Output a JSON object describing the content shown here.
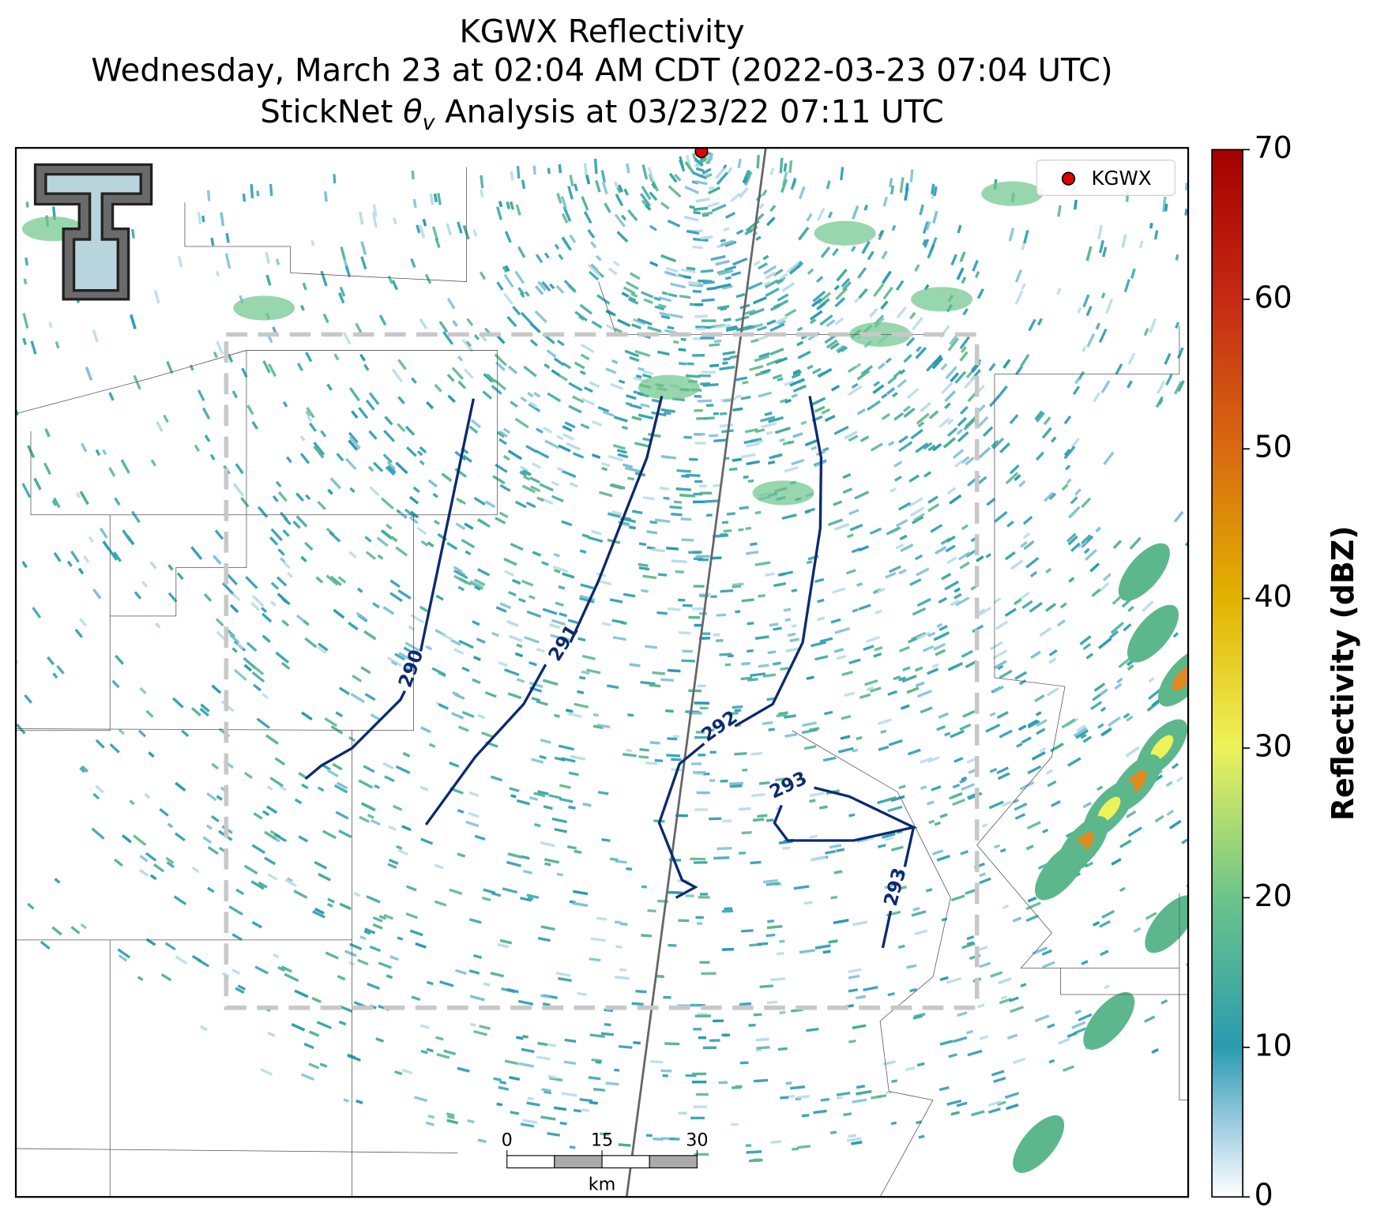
{
  "title": {
    "line1": "KGWX Reflectivity",
    "line2": "Wednesday, March 23 at 02:04 AM CDT (2022-03-23 07:04 UTC)",
    "line3_prefix": "StickNet ",
    "line3_symbol": "θ",
    "line3_subscript": "v",
    "line3_suffix": " Analysis at 03/23/22 07:11 UTC"
  },
  "legend": {
    "label": "KGWX",
    "color": "#e00000"
  },
  "colorbar": {
    "label": "Reflectivity (dBZ)",
    "vlim": [
      0,
      70
    ],
    "ticks": [
      0,
      10,
      20,
      30,
      40,
      50,
      60,
      70
    ]
  },
  "contours": [
    {
      "level": 290
    },
    {
      "level": 291
    },
    {
      "level": 292
    },
    {
      "level": 293
    },
    {
      "level": 293
    }
  ],
  "scale_bar": {
    "ticks": [
      0,
      15,
      30
    ],
    "unit": "km"
  }
}
